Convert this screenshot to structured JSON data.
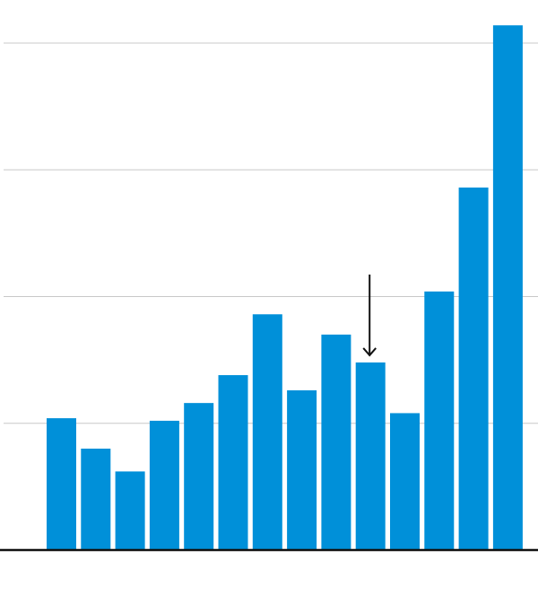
{
  "chart_data": {
    "type": "bar",
    "categories": [
      "",
      "",
      "",
      "",
      "",
      "",
      "",
      "",
      "",
      "",
      "",
      "",
      "",
      ""
    ],
    "values": [
      26,
      20,
      15.5,
      25.5,
      29,
      34.5,
      46.5,
      31.5,
      42.5,
      37,
      27,
      51,
      71.5,
      103.5
    ],
    "title": "",
    "xlabel": "",
    "ylabel": "",
    "ylim": [
      0,
      100
    ],
    "yticks": [
      0,
      25,
      50,
      75,
      100
    ],
    "grid": true,
    "legend": "none",
    "bar_color": "#0090d9",
    "annotation": {
      "type": "arrow",
      "category_index": 9,
      "direction": "down"
    }
  }
}
